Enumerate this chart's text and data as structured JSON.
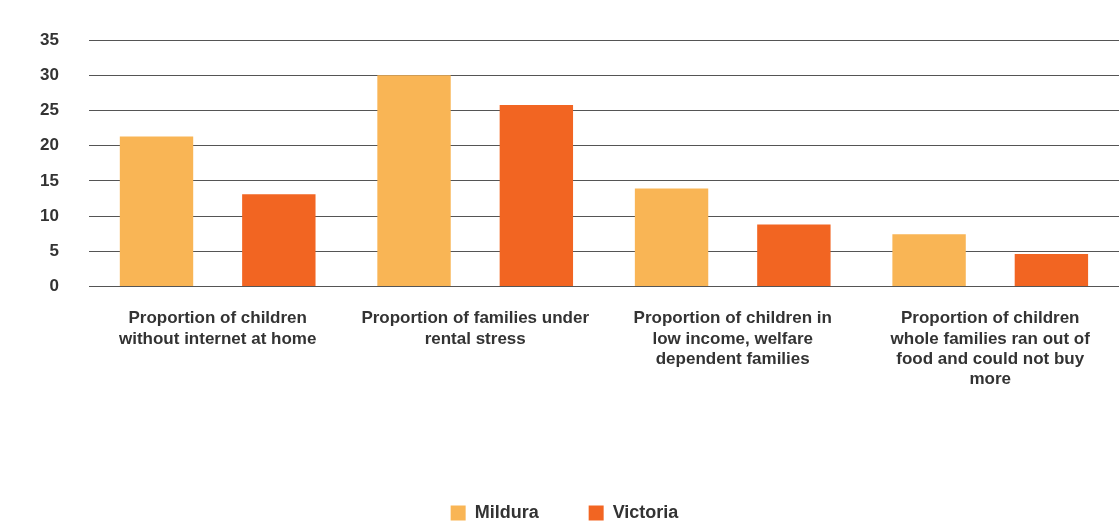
{
  "chart_data": {
    "type": "bar",
    "categories": [
      "Proportion of children without internet at home",
      "Proportion of families under rental stress",
      "Proportion of children in low income, welfare dependent families",
      "Proportion of children whole families ran out of food and could not buy more"
    ],
    "series": [
      {
        "name": "Mildura",
        "color": "#f9b555",
        "values": [
          21.3,
          30.0,
          13.9,
          7.4
        ]
      },
      {
        "name": "Victoria",
        "color": "#f26522",
        "values": [
          13.1,
          25.8,
          8.8,
          4.6
        ]
      }
    ],
    "ylim": [
      0,
      35
    ],
    "yticks": [
      0,
      5,
      10,
      15,
      20,
      25,
      30,
      35
    ],
    "grid": "y",
    "legend": "bottom"
  }
}
